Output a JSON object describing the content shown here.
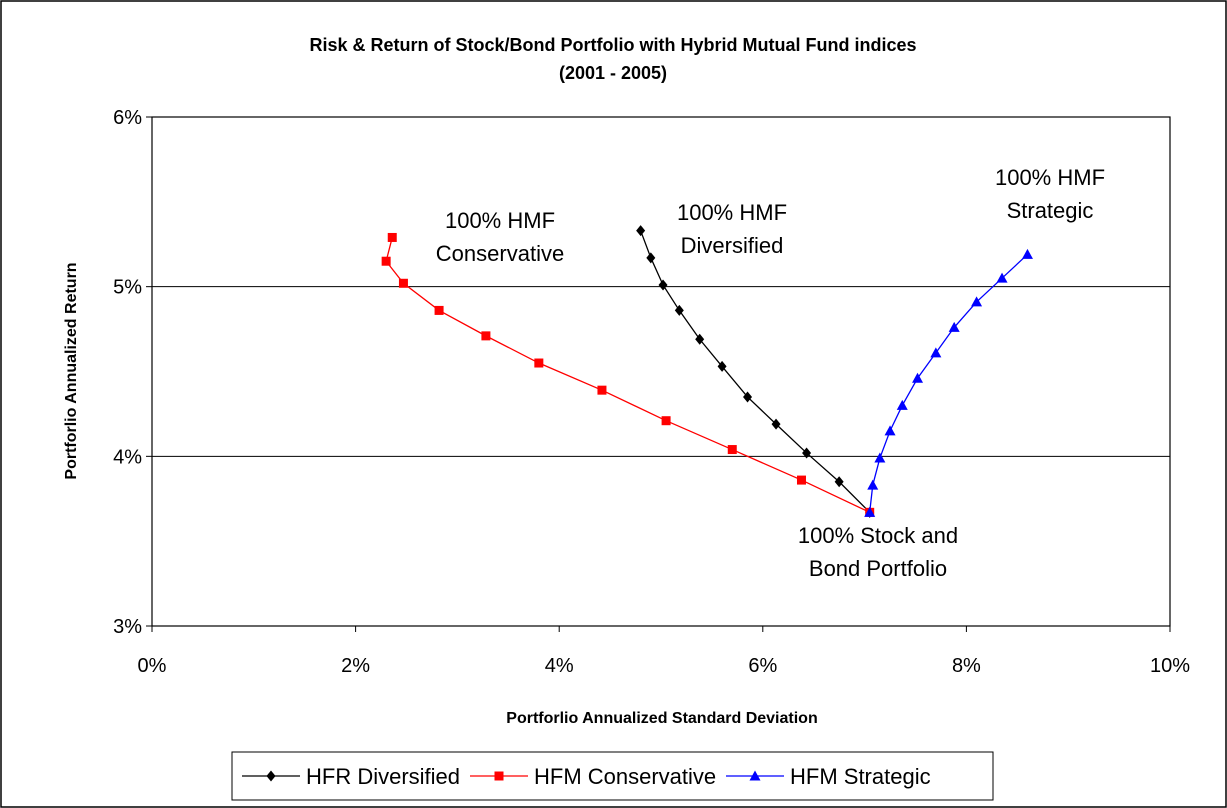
{
  "chart_data": {
    "type": "line",
    "title": "Risk & Return of Stock/Bond Portfolio with Hybrid Mutual Fund indices",
    "subtitle": "(2001 - 2005)",
    "x_label": "Portforlio Annualized Standard Deviation",
    "y_label": "Portforlio Annualized Return",
    "xlim": [
      0,
      10
    ],
    "xticks": [
      {
        "value": 0,
        "label": "0%"
      },
      {
        "value": 2,
        "label": "2%"
      },
      {
        "value": 4,
        "label": "4%"
      },
      {
        "value": 6,
        "label": "6%"
      },
      {
        "value": 8,
        "label": "8%"
      },
      {
        "value": 10,
        "label": "10%"
      }
    ],
    "ylim": [
      3,
      6
    ],
    "yticks": [
      {
        "value": 3,
        "label": "3%"
      },
      {
        "value": 4,
        "label": "4%"
      },
      {
        "value": 5,
        "label": "5%"
      },
      {
        "value": 6,
        "label": "6%"
      }
    ],
    "grid": true,
    "legend": "bottom",
    "series": [
      {
        "name": "HFR Diversified",
        "color": "#000000",
        "marker": "diamond",
        "x": [
          4.8,
          4.9,
          5.02,
          5.18,
          5.38,
          5.6,
          5.85,
          6.13,
          6.43,
          6.75,
          7.05
        ],
        "values": [
          5.33,
          5.17,
          5.01,
          4.86,
          4.69,
          4.53,
          4.35,
          4.19,
          4.02,
          3.85,
          3.67
        ]
      },
      {
        "name": "HFM Conservative",
        "color": "#ff0000",
        "marker": "square",
        "x": [
          2.36,
          2.3,
          2.47,
          2.82,
          3.28,
          3.8,
          4.42,
          5.05,
          5.7,
          6.38,
          7.05
        ],
        "values": [
          5.29,
          5.15,
          5.02,
          4.86,
          4.71,
          4.55,
          4.39,
          4.21,
          4.04,
          3.86,
          3.67
        ]
      },
      {
        "name": "HFM Strategic",
        "color": "#0000ff",
        "marker": "triangle",
        "x": [
          7.05,
          7.08,
          7.15,
          7.25,
          7.37,
          7.52,
          7.7,
          7.88,
          8.1,
          8.35,
          8.6
        ],
        "values": [
          3.67,
          3.83,
          3.99,
          4.15,
          4.3,
          4.46,
          4.61,
          4.76,
          4.91,
          5.05,
          5.19
        ]
      }
    ],
    "annotations": [
      [
        "100% HMF",
        "Conservative"
      ],
      [
        "100% HMF",
        "Diversified"
      ],
      [
        "100% HMF",
        "Strategic"
      ],
      [
        "100% Stock and",
        "Bond Portfolio"
      ]
    ]
  }
}
